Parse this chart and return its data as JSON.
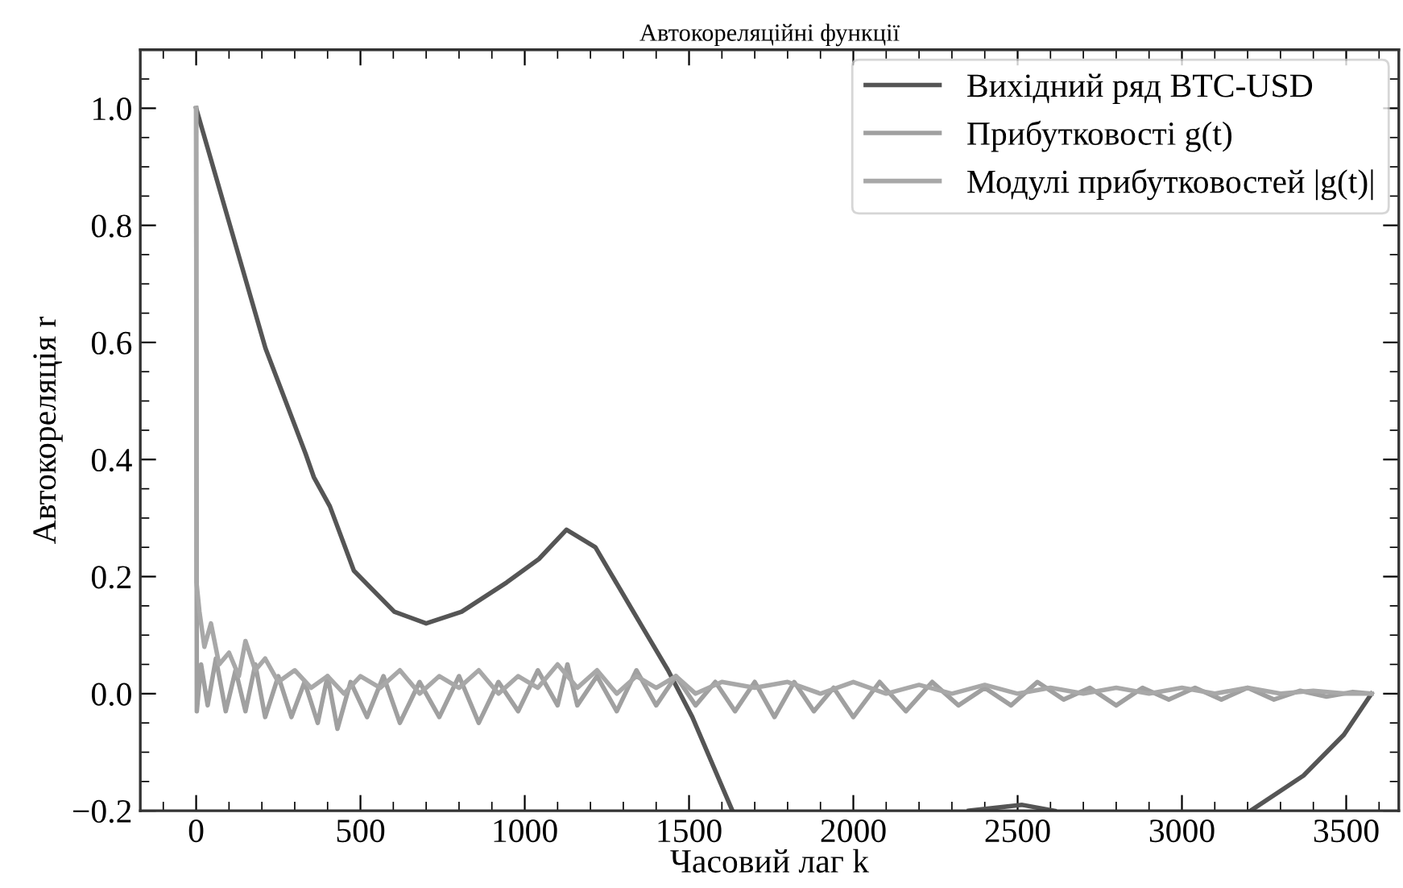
{
  "chart_data": {
    "type": "line",
    "title": "Автокореляційні функції",
    "xlabel": "Часовий лаг k",
    "ylabel": "Автокореляція r",
    "xlim": [
      -170,
      3660
    ],
    "ylim": [
      -0.2,
      1.1
    ],
    "xticks": [
      0,
      500,
      1000,
      1500,
      2000,
      2500,
      3000,
      3500
    ],
    "yticks": [
      {
        "value": -0.2,
        "label": "−0.2"
      },
      {
        "value": 0.0,
        "label": "0.0"
      },
      {
        "value": 0.2,
        "label": "0.2"
      },
      {
        "value": 0.4,
        "label": "0.4"
      },
      {
        "value": 0.6,
        "label": "0.6"
      },
      {
        "value": 0.8,
        "label": "0.8"
      },
      {
        "value": 1.0,
        "label": "1.0"
      }
    ],
    "grid": false,
    "legend": "top right",
    "line_style": "solid",
    "marker": "none",
    "series": [
      {
        "name": "Вихідний ряд BTC-USD",
        "color": "#555555",
        "x": [
          0,
          211,
          333,
          358,
          407,
          480,
          603,
          700,
          808,
          945,
          1043,
          1127,
          1215,
          1362,
          1436,
          1510,
          1632,
          2000,
          2352,
          2514,
          2612,
          2900,
          3209,
          3370,
          3493,
          3577
        ],
        "values": [
          1.0,
          0.59,
          0.41,
          0.37,
          0.32,
          0.21,
          0.14,
          0.12,
          0.14,
          0.19,
          0.23,
          0.28,
          0.25,
          0.11,
          0.04,
          -0.04,
          -0.2,
          null,
          -0.2,
          -0.19,
          -0.2,
          null,
          -0.2,
          -0.14,
          -0.07,
          0.0
        ]
      },
      {
        "name": "Прибутковості g(t)",
        "color": "#a0a0a0",
        "x": [
          0,
          2,
          15,
          35,
          60,
          90,
          120,
          150,
          180,
          210,
          250,
          290,
          330,
          370,
          400,
          430,
          470,
          520,
          570,
          620,
          680,
          740,
          800,
          860,
          920,
          980,
          1040,
          1100,
          1130,
          1160,
          1220,
          1280,
          1340,
          1400,
          1460,
          1520,
          1580,
          1640,
          1700,
          1760,
          1820,
          1880,
          1940,
          2000,
          2080,
          2160,
          2240,
          2320,
          2400,
          2480,
          2560,
          2640,
          2720,
          2800,
          2880,
          2960,
          3040,
          3120,
          3200,
          3280,
          3360,
          3440,
          3520,
          3577
        ],
        "values": [
          1.0,
          -0.03,
          0.05,
          -0.02,
          0.06,
          -0.03,
          0.04,
          -0.03,
          0.05,
          -0.04,
          0.03,
          -0.04,
          0.02,
          -0.05,
          0.03,
          -0.06,
          0.02,
          -0.04,
          0.03,
          -0.05,
          0.02,
          -0.04,
          0.03,
          -0.05,
          0.02,
          -0.03,
          0.04,
          -0.02,
          0.05,
          -0.02,
          0.03,
          -0.03,
          0.04,
          -0.02,
          0.03,
          -0.02,
          0.02,
          -0.03,
          0.02,
          -0.04,
          0.02,
          -0.03,
          0.01,
          -0.04,
          0.02,
          -0.03,
          0.02,
          -0.02,
          0.01,
          -0.02,
          0.02,
          -0.01,
          0.01,
          -0.02,
          0.01,
          -0.01,
          0.01,
          -0.01,
          0.01,
          -0.01,
          0.005,
          -0.005,
          0.003,
          0.0
        ]
      },
      {
        "name": "Модулі прибутковостей |g(t)|",
        "color": "#a8a8a8",
        "x": [
          0,
          1,
          10,
          25,
          45,
          70,
          100,
          130,
          150,
          180,
          210,
          250,
          300,
          350,
          400,
          450,
          500,
          560,
          620,
          680,
          740,
          800,
          860,
          920,
          980,
          1040,
          1100,
          1160,
          1220,
          1280,
          1340,
          1400,
          1460,
          1520,
          1600,
          1700,
          1800,
          1900,
          2000,
          2100,
          2200,
          2300,
          2400,
          2500,
          2600,
          2700,
          2800,
          2900,
          3000,
          3100,
          3200,
          3300,
          3400,
          3500,
          3577
        ],
        "values": [
          1.0,
          0.19,
          0.14,
          0.08,
          0.12,
          0.05,
          0.07,
          0.03,
          0.09,
          0.04,
          0.06,
          0.02,
          0.04,
          0.01,
          0.03,
          0.0,
          0.03,
          0.01,
          0.04,
          0.0,
          0.03,
          0.01,
          0.04,
          0.0,
          0.03,
          0.01,
          0.05,
          0.01,
          0.04,
          0.0,
          0.03,
          0.01,
          0.03,
          0.0,
          0.02,
          0.01,
          0.02,
          0.0,
          0.02,
          0.0,
          0.015,
          0.0,
          0.015,
          0.0,
          0.01,
          0.0,
          0.01,
          0.0,
          0.01,
          0.0,
          0.01,
          0.0,
          0.005,
          0.0,
          0.0
        ]
      }
    ]
  }
}
